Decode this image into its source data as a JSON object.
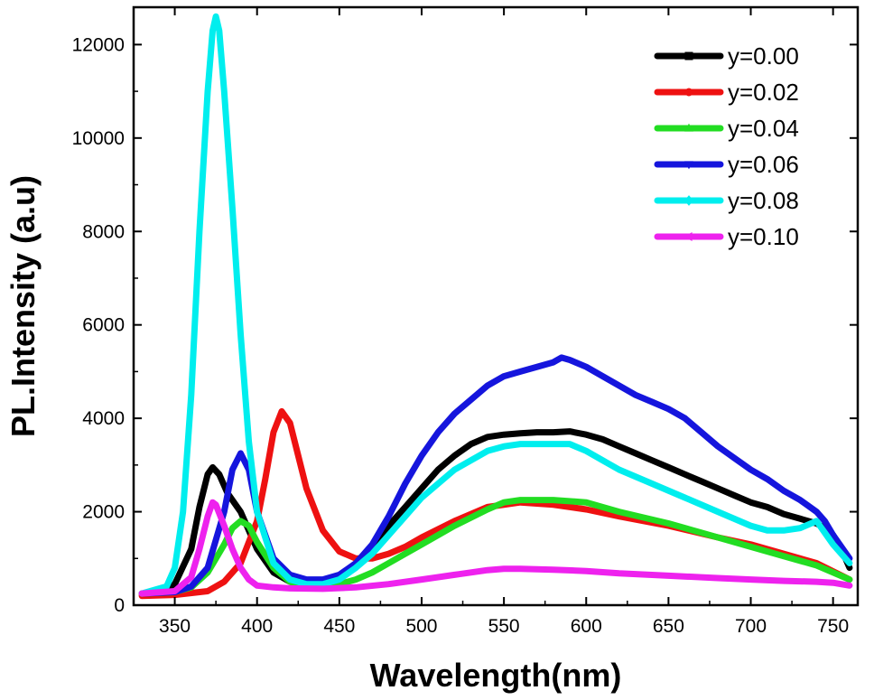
{
  "chart_data": {
    "type": "line",
    "xlabel": "Wavelength(nm)",
    "ylabel": "PL.Intensity (a.u)",
    "xlim": [
      325,
      765
    ],
    "ylim": [
      0,
      12800
    ],
    "xticks": [
      350,
      400,
      450,
      500,
      550,
      600,
      650,
      700,
      750
    ],
    "yticks": [
      0,
      2000,
      4000,
      6000,
      8000,
      10000,
      12000
    ],
    "legend_position": "top-right",
    "grid": false,
    "series": [
      {
        "name": "y=0.00",
        "color": "#000000",
        "marker": "square",
        "x": [
          330,
          340,
          350,
          360,
          365,
          370,
          373,
          377,
          382,
          390,
          400,
          410,
          420,
          430,
          440,
          450,
          460,
          470,
          480,
          490,
          500,
          510,
          520,
          530,
          540,
          550,
          560,
          570,
          580,
          590,
          600,
          610,
          620,
          630,
          640,
          650,
          660,
          670,
          680,
          690,
          700,
          710,
          720,
          730,
          740,
          745,
          750,
          755,
          760
        ],
        "y": [
          250,
          280,
          450,
          1200,
          2100,
          2800,
          2950,
          2800,
          2400,
          2000,
          1200,
          700,
          500,
          450,
          450,
          550,
          850,
          1250,
          1700,
          2100,
          2500,
          2900,
          3200,
          3450,
          3600,
          3650,
          3680,
          3700,
          3700,
          3720,
          3650,
          3550,
          3400,
          3250,
          3100,
          2950,
          2800,
          2650,
          2500,
          2350,
          2200,
          2100,
          1950,
          1850,
          1750,
          1650,
          1500,
          1200,
          800
        ]
      },
      {
        "name": "y=0.02",
        "color": "#ee1111",
        "marker": "circle",
        "x": [
          330,
          350,
          370,
          380,
          390,
          400,
          405,
          410,
          415,
          420,
          425,
          430,
          440,
          450,
          460,
          470,
          480,
          490,
          500,
          520,
          540,
          560,
          580,
          600,
          620,
          650,
          680,
          700,
          720,
          740,
          760
        ],
        "y": [
          200,
          220,
          300,
          500,
          900,
          1800,
          2700,
          3700,
          4150,
          3900,
          3200,
          2500,
          1600,
          1150,
          1000,
          1000,
          1100,
          1250,
          1450,
          1800,
          2100,
          2200,
          2150,
          2050,
          1900,
          1700,
          1450,
          1300,
          1100,
          900,
          550
        ]
      },
      {
        "name": "y=0.04",
        "color": "#22dd22",
        "marker": "triangle-up",
        "x": [
          330,
          350,
          360,
          370,
          380,
          385,
          390,
          395,
          400,
          410,
          420,
          430,
          440,
          450,
          460,
          470,
          480,
          490,
          500,
          520,
          540,
          550,
          560,
          570,
          580,
          600,
          620,
          650,
          680,
          700,
          720,
          740,
          760
        ],
        "y": [
          250,
          280,
          380,
          700,
          1300,
          1650,
          1800,
          1700,
          1350,
          800,
          500,
          400,
          400,
          450,
          550,
          700,
          900,
          1100,
          1300,
          1700,
          2050,
          2200,
          2250,
          2250,
          2250,
          2200,
          2000,
          1750,
          1450,
          1250,
          1050,
          850,
          550
        ]
      },
      {
        "name": "y=0.06",
        "color": "#1515dd",
        "marker": "triangle-down",
        "x": [
          330,
          350,
          360,
          370,
          380,
          385,
          390,
          395,
          400,
          410,
          420,
          430,
          440,
          450,
          460,
          470,
          480,
          490,
          500,
          510,
          520,
          530,
          540,
          550,
          560,
          570,
          580,
          585,
          590,
          600,
          610,
          620,
          630,
          640,
          650,
          660,
          670,
          680,
          690,
          700,
          710,
          720,
          730,
          740,
          745,
          750,
          760
        ],
        "y": [
          250,
          280,
          400,
          800,
          2000,
          2900,
          3250,
          2900,
          2000,
          1000,
          650,
          550,
          550,
          650,
          900,
          1300,
          1900,
          2600,
          3200,
          3700,
          4100,
          4400,
          4700,
          4900,
          5000,
          5100,
          5200,
          5300,
          5250,
          5100,
          4900,
          4700,
          4500,
          4350,
          4200,
          4000,
          3700,
          3400,
          3150,
          2900,
          2700,
          2450,
          2250,
          2000,
          1800,
          1500,
          1000
        ]
      },
      {
        "name": "y=0.08",
        "color": "#00eeee",
        "marker": "diamond",
        "x": [
          330,
          345,
          350,
          355,
          360,
          365,
          370,
          373,
          375,
          377,
          380,
          385,
          390,
          395,
          400,
          410,
          420,
          430,
          440,
          450,
          460,
          470,
          480,
          490,
          500,
          520,
          540,
          550,
          560,
          570,
          580,
          590,
          600,
          610,
          620,
          640,
          660,
          680,
          700,
          710,
          720,
          730,
          740,
          750,
          760
        ],
        "y": [
          250,
          400,
          800,
          2000,
          4500,
          8000,
          11000,
          12300,
          12600,
          12300,
          11000,
          8500,
          5800,
          3500,
          2000,
          900,
          550,
          450,
          450,
          550,
          800,
          1100,
          1500,
          1900,
          2300,
          2900,
          3300,
          3400,
          3450,
          3450,
          3450,
          3450,
          3300,
          3100,
          2900,
          2600,
          2300,
          2000,
          1700,
          1600,
          1600,
          1650,
          1800,
          1300,
          900
        ]
      },
      {
        "name": "y=0.10",
        "color": "#ee22ee",
        "marker": "triangle-left",
        "x": [
          330,
          350,
          360,
          365,
          370,
          373,
          375,
          380,
          385,
          390,
          395,
          400,
          410,
          420,
          440,
          460,
          480,
          500,
          520,
          540,
          550,
          560,
          580,
          600,
          620,
          650,
          680,
          700,
          720,
          740,
          750,
          760
        ],
        "y": [
          250,
          300,
          600,
          1200,
          1900,
          2200,
          2150,
          1700,
          1200,
          800,
          550,
          420,
          380,
          360,
          350,
          380,
          450,
          550,
          650,
          750,
          780,
          780,
          760,
          730,
          680,
          630,
          580,
          550,
          520,
          500,
          480,
          420
        ]
      }
    ]
  }
}
